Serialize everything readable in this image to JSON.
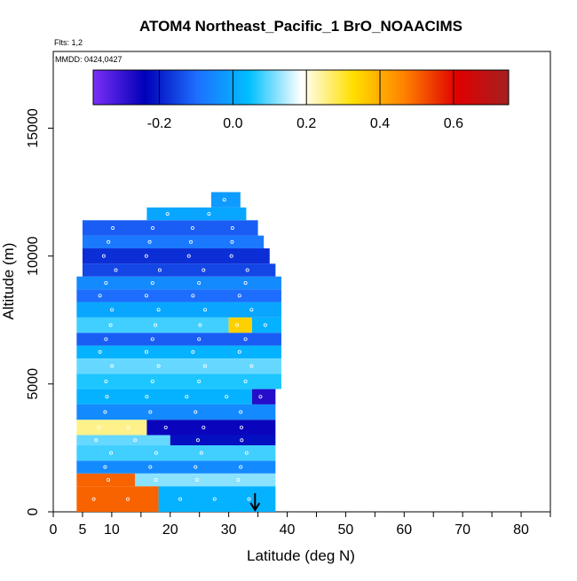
{
  "chart_data": {
    "type": "heatmap",
    "title": "ATOM4 Northeast_Pacific_1 BrO_NOAACIMS",
    "subtitle_flights": "Flts: 1,2",
    "subtitle_dates": "MMDD: 0424,0427",
    "xlabel": "Latitude (deg N)",
    "ylabel": "Altitude (m)",
    "xlim": [
      0,
      85
    ],
    "ylim": [
      0,
      18000
    ],
    "x_ticks": [
      0,
      5,
      10,
      20,
      30,
      40,
      50,
      60,
      70,
      80
    ],
    "x_tick_labels": [
      "0",
      "5",
      "10",
      "20",
      "30",
      "40",
      "50",
      "60",
      "70",
      "80"
    ],
    "y_ticks": [
      0,
      5000,
      10000,
      15000
    ],
    "y_tick_labels": [
      "0",
      "5000",
      "10000",
      "15000"
    ],
    "colorbar": {
      "range": [
        -0.38,
        0.75
      ],
      "ticks": [
        -0.2,
        0.0,
        0.2,
        0.4,
        0.6
      ],
      "tick_labels": [
        "-0.2",
        "0.0",
        "0.2",
        "0.4",
        "0.6"
      ],
      "colors": [
        "#7b2ff7",
        "#0000b8",
        "#1e6fff",
        "#00bfff",
        "#ffffff",
        "#ffe000",
        "#ff8000",
        "#e00000",
        "#a52020"
      ]
    },
    "arrow_latitude": 34.5,
    "cells": [
      {
        "lat0": 4,
        "lat1": 18,
        "alt0": 0,
        "alt1": 1000,
        "value": 0.5
      },
      {
        "lat0": 18,
        "lat1": 38,
        "alt0": 0,
        "alt1": 1000,
        "value": 0.02
      },
      {
        "lat0": 4,
        "lat1": 14,
        "alt0": 1000,
        "alt1": 1500,
        "value": 0.5
      },
      {
        "lat0": 14,
        "lat1": 38,
        "alt0": 1000,
        "alt1": 1500,
        "value": 0.12
      },
      {
        "lat0": 4,
        "lat1": 38,
        "alt0": 1500,
        "alt1": 2000,
        "value": -0.05
      },
      {
        "lat0": 4,
        "lat1": 38,
        "alt0": 2000,
        "alt1": 2600,
        "value": 0.08
      },
      {
        "lat0": 4,
        "lat1": 20,
        "alt0": 2600,
        "alt1": 3000,
        "value": 0.1
      },
      {
        "lat0": 20,
        "lat1": 38,
        "alt0": 2600,
        "alt1": 3000,
        "value": -0.22
      },
      {
        "lat0": 4,
        "lat1": 16,
        "alt0": 3000,
        "alt1": 3600,
        "value": 0.25
      },
      {
        "lat0": 16,
        "lat1": 38,
        "alt0": 3000,
        "alt1": 3600,
        "value": -0.25
      },
      {
        "lat0": 4,
        "lat1": 38,
        "alt0": 3600,
        "alt1": 4200,
        "value": -0.05
      },
      {
        "lat0": 4,
        "lat1": 34,
        "alt0": 4200,
        "alt1": 4800,
        "value": 0.02
      },
      {
        "lat0": 34,
        "lat1": 38,
        "alt0": 4200,
        "alt1": 4800,
        "value": -0.28
      },
      {
        "lat0": 4,
        "lat1": 39,
        "alt0": 4800,
        "alt1": 5400,
        "value": 0.06
      },
      {
        "lat0": 4,
        "lat1": 39,
        "alt0": 5400,
        "alt1": 6000,
        "value": 0.1
      },
      {
        "lat0": 4,
        "lat1": 39,
        "alt0": 6000,
        "alt1": 6500,
        "value": 0.02
      },
      {
        "lat0": 4,
        "lat1": 39,
        "alt0": 6500,
        "alt1": 7000,
        "value": -0.12
      },
      {
        "lat0": 4,
        "lat1": 30,
        "alt0": 7000,
        "alt1": 7600,
        "value": 0.08
      },
      {
        "lat0": 30,
        "lat1": 34,
        "alt0": 7000,
        "alt1": 7600,
        "value": 0.35
      },
      {
        "lat0": 34,
        "lat1": 39,
        "alt0": 7000,
        "alt1": 7600,
        "value": 0.02
      },
      {
        "lat0": 4,
        "lat1": 39,
        "alt0": 7600,
        "alt1": 8200,
        "value": 0.0
      },
      {
        "lat0": 4,
        "lat1": 39,
        "alt0": 8200,
        "alt1": 8700,
        "value": -0.1
      },
      {
        "lat0": 4,
        "lat1": 39,
        "alt0": 8700,
        "alt1": 9200,
        "value": -0.05
      },
      {
        "lat0": 5,
        "lat1": 38,
        "alt0": 9200,
        "alt1": 9700,
        "value": -0.15
      },
      {
        "lat0": 5,
        "lat1": 37,
        "alt0": 9700,
        "alt1": 10300,
        "value": -0.18
      },
      {
        "lat0": 5,
        "lat1": 36,
        "alt0": 10300,
        "alt1": 10800,
        "value": -0.08
      },
      {
        "lat0": 5,
        "lat1": 35,
        "alt0": 10800,
        "alt1": 11400,
        "value": -0.12
      },
      {
        "lat0": 16,
        "lat1": 33,
        "alt0": 11400,
        "alt1": 11900,
        "value": 0.0
      },
      {
        "lat0": 27,
        "lat1": 32,
        "alt0": 11900,
        "alt1": 12500,
        "value": -0.02
      }
    ]
  }
}
